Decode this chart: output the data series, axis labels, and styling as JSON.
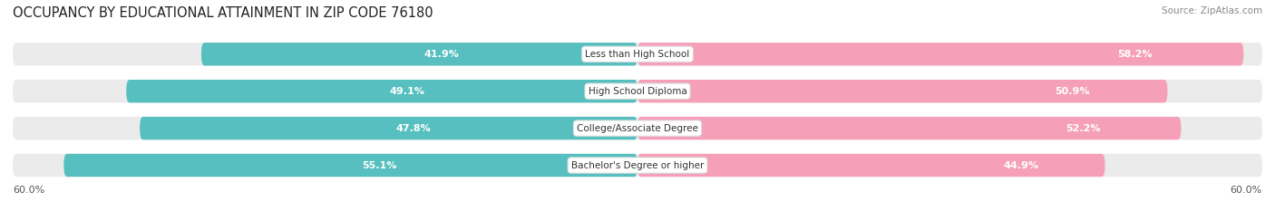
{
  "title": "OCCUPANCY BY EDUCATIONAL ATTAINMENT IN ZIP CODE 76180",
  "source": "Source: ZipAtlas.com",
  "categories": [
    "Less than High School",
    "High School Diploma",
    "College/Associate Degree",
    "Bachelor's Degree or higher"
  ],
  "owner_values": [
    41.9,
    49.1,
    47.8,
    55.1
  ],
  "renter_values": [
    58.2,
    50.9,
    52.2,
    44.9
  ],
  "owner_color": "#57bfbf",
  "renter_color": "#f5a0b8",
  "bg_color": "#ffffff",
  "bar_bg_color": "#ebebeb",
  "axis_max": 60.0,
  "axis_label": "60.0%",
  "title_fontsize": 10.5,
  "source_fontsize": 7.5,
  "bar_label_fontsize": 8,
  "category_fontsize": 7.5,
  "axis_fontsize": 8
}
